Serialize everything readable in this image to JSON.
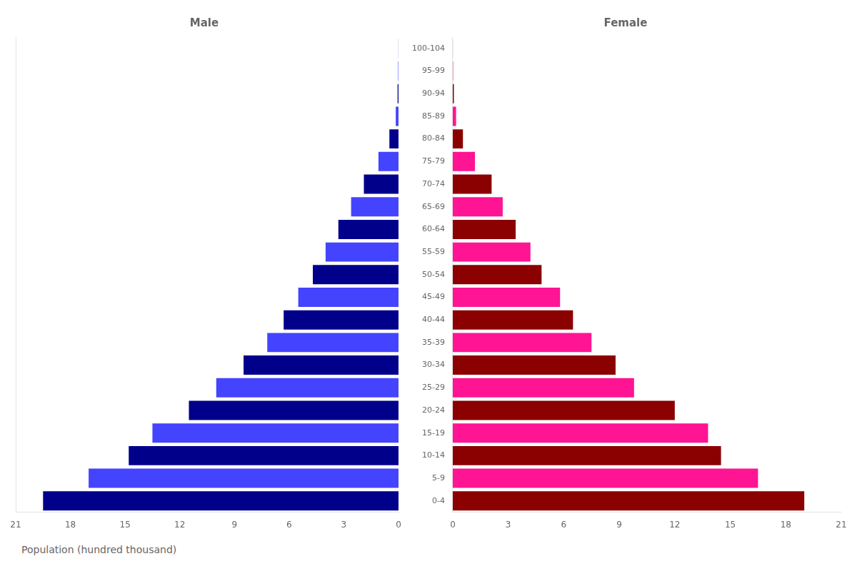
{
  "chart_data": [
    {
      "type": "bar",
      "orientation": "horizontal",
      "title": "Male",
      "xlabel": "Population (hundred thousand)",
      "categories": [
        "0-4",
        "5-9",
        "10-14",
        "15-19",
        "20-24",
        "25-29",
        "30-34",
        "35-39",
        "40-44",
        "45-49",
        "50-54",
        "55-59",
        "60-64",
        "65-69",
        "70-74",
        "75-79",
        "80-84",
        "85-89",
        "90-94",
        "95-99",
        "100-104"
      ],
      "values": [
        19.5,
        17.0,
        14.8,
        13.5,
        11.5,
        10.0,
        8.5,
        7.2,
        6.3,
        5.5,
        4.7,
        4.0,
        3.3,
        2.6,
        1.9,
        1.1,
        0.5,
        0.15,
        0.05,
        0.02,
        0.005
      ],
      "colors": [
        "#00008B",
        "#4444FF",
        "#00008B",
        "#4444FF",
        "#00008B",
        "#4444FF",
        "#00008B",
        "#4444FF",
        "#00008B",
        "#4444FF",
        "#00008B",
        "#4444FF",
        "#00008B",
        "#4444FF",
        "#00008B",
        "#4444FF",
        "#00008B",
        "#4444FF",
        "#00008B",
        "#4444FF",
        "#00008B"
      ],
      "xlim": [
        21,
        0
      ],
      "xticks": [
        0,
        3,
        6,
        9,
        12,
        15,
        18,
        21
      ],
      "grid": false,
      "tick_labels": "x"
    },
    {
      "type": "bar",
      "orientation": "horizontal",
      "title": "Female",
      "categories": [
        "0-4",
        "5-9",
        "10-14",
        "15-19",
        "20-24",
        "25-29",
        "30-34",
        "35-39",
        "40-44",
        "45-49",
        "50-54",
        "55-59",
        "60-64",
        "65-69",
        "70-74",
        "75-79",
        "80-84",
        "85-89",
        "90-94",
        "95-99",
        "100-104"
      ],
      "values": [
        19.0,
        16.5,
        14.5,
        13.8,
        12.0,
        9.8,
        8.8,
        7.5,
        6.5,
        5.8,
        4.8,
        4.2,
        3.4,
        2.7,
        2.1,
        1.2,
        0.55,
        0.18,
        0.06,
        0.02,
        0.005
      ],
      "colors": [
        "#8B0000",
        "#FF1493",
        "#8B0000",
        "#FF1493",
        "#8B0000",
        "#FF1493",
        "#8B0000",
        "#FF1493",
        "#8B0000",
        "#FF1493",
        "#8B0000",
        "#FF1493",
        "#8B0000",
        "#FF1493",
        "#8B0000",
        "#FF1493",
        "#8B0000",
        "#FF1493",
        "#8B0000",
        "#FF1493",
        "#8B0000"
      ],
      "xlim": [
        0,
        21
      ],
      "xticks": [
        0,
        3,
        6,
        9,
        12,
        15,
        18,
        21
      ],
      "grid": false
    }
  ]
}
